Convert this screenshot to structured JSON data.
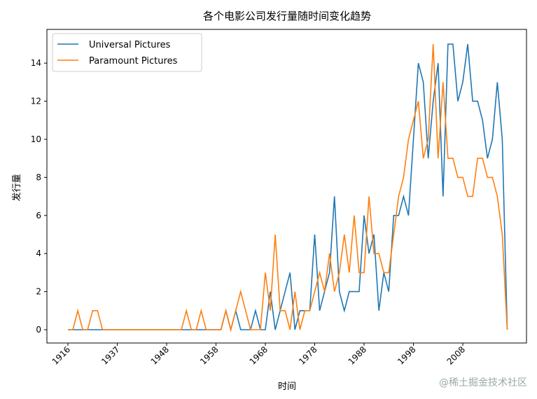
{
  "chart_data": {
    "type": "line",
    "title": "各个电影公司发行量随时间变化趋势",
    "xlabel": "时间",
    "ylabel": "发行量",
    "ylim": [
      -0.75,
      15.75
    ],
    "yticks": [
      0,
      2,
      4,
      6,
      8,
      10,
      12,
      14
    ],
    "xtick_labels": [
      "1916",
      "1937",
      "1948",
      "1958",
      "1968",
      "1978",
      "1988",
      "1998",
      "2008"
    ],
    "legend_position": "top-left",
    "x": [
      1916,
      1918,
      1920,
      1922,
      1925,
      1927,
      1929,
      1931,
      1933,
      1935,
      1937,
      1938,
      1939,
      1940,
      1941,
      1942,
      1943,
      1944,
      1946,
      1947,
      1948,
      1949,
      1950,
      1951,
      1952,
      1953,
      1954,
      1955,
      1956,
      1957,
      1958,
      1959,
      1960,
      1961,
      1962,
      1963,
      1964,
      1965,
      1966,
      1967,
      1968,
      1969,
      1970,
      1971,
      1972,
      1973,
      1974,
      1975,
      1976,
      1977,
      1978,
      1979,
      1980,
      1981,
      1982,
      1983,
      1984,
      1985,
      1986,
      1987,
      1988,
      1989,
      1990,
      1991,
      1992,
      1993,
      1994,
      1995,
      1996,
      1997,
      1998,
      1999,
      2000,
      2001,
      2002,
      2003,
      2004,
      2005,
      2006,
      2007,
      2008,
      2009,
      2010,
      2011,
      2012,
      2013,
      2014,
      2015,
      2016,
      2017
    ],
    "series": [
      {
        "name": "Universal Pictures",
        "color": "#1f77b4",
        "values": [
          0,
          0,
          0,
          0,
          0,
          0,
          0,
          0,
          0,
          0,
          0,
          0,
          0,
          0,
          0,
          0,
          0,
          0,
          0,
          0,
          0,
          0,
          0,
          0,
          0,
          0,
          0,
          0,
          0,
          0,
          0,
          0,
          1,
          0,
          1,
          0,
          0,
          0,
          1,
          0,
          0,
          2,
          0,
          1,
          2,
          3,
          0,
          1,
          1,
          1,
          5,
          1,
          2,
          3,
          7,
          2,
          1,
          2,
          2,
          2,
          6,
          4,
          5,
          1,
          3,
          2,
          6,
          6,
          7,
          6,
          10,
          14,
          13,
          9,
          12,
          14,
          7,
          15,
          15,
          12,
          13,
          15,
          12,
          12,
          11,
          9,
          10,
          13,
          10,
          0
        ]
      },
      {
        "name": "Paramount Pictures",
        "color": "#ff7f0e",
        "values": [
          0,
          0,
          1,
          0,
          0,
          1,
          1,
          0,
          0,
          0,
          0,
          0,
          0,
          0,
          0,
          0,
          0,
          0,
          0,
          0,
          0,
          0,
          0,
          0,
          1,
          0,
          0,
          1,
          0,
          0,
          0,
          0,
          1,
          0,
          1,
          2,
          1,
          0,
          0,
          0,
          3,
          1,
          5,
          1,
          1,
          0,
          2,
          0,
          1,
          1,
          2,
          3,
          2,
          4,
          2,
          3,
          5,
          3,
          6,
          3,
          3,
          7,
          4,
          4,
          3,
          3,
          5,
          7,
          8,
          10,
          11,
          12,
          9,
          10,
          15,
          9,
          13,
          9,
          9,
          8,
          8,
          7,
          7,
          9,
          9,
          8,
          8,
          7,
          5,
          0
        ]
      }
    ]
  },
  "watermark": "@稀土掘金技术社区"
}
